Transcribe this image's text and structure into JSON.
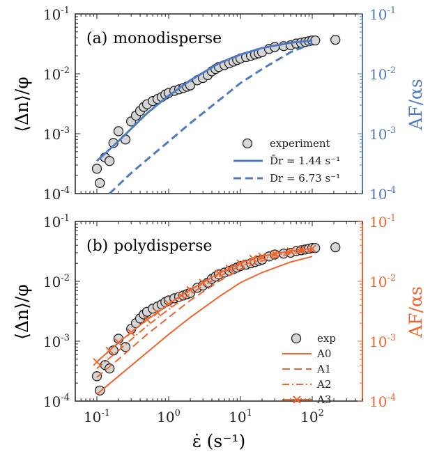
{
  "colors": {
    "blue": "#4f79c0",
    "orange": "#f0642d",
    "marker_fill": "#d6d6d6",
    "marker_edge": "#222222",
    "axis": "#222222"
  },
  "shared": {
    "xlabel": "ε̇ (s⁻¹)",
    "ylabel_left": "⟨Δn⟩/φ",
    "ylabel_right": "AF/αs",
    "x_ticks": [
      "10^-1",
      "10^0",
      "10^1",
      "10^2"
    ],
    "y_ticks": [
      "10^-4",
      "10^-3",
      "10^-2",
      "10^-1"
    ]
  },
  "chart_data": [
    {
      "type": "scatter",
      "panel": "(a)",
      "title": "monodisperse",
      "xscale": "log",
      "yscale": "log",
      "xlim": [
        0.05,
        500
      ],
      "ylim": [
        0.0001,
        0.1
      ],
      "right_axis": {
        "label": "AF/αs",
        "ylim": [
          0.0001,
          0.1
        ],
        "color": "#4f79c0"
      },
      "legend_position": "lower-right",
      "series": [
        {
          "name": "experiment",
          "kind": "markers",
          "x": [
            0.1,
            0.11,
            0.13,
            0.15,
            0.17,
            0.2,
            0.25,
            0.3,
            0.35,
            0.4,
            0.45,
            0.5,
            0.6,
            0.7,
            0.8,
            0.9,
            1.0,
            1.2,
            1.4,
            1.6,
            1.8,
            2.0,
            2.5,
            3.0,
            3.5,
            4.0,
            4.5,
            5.0,
            6.0,
            7.0,
            8.0,
            9.0,
            10,
            12,
            14,
            16,
            18,
            20,
            25,
            30,
            40,
            50,
            60,
            70,
            80,
            90,
            100,
            110,
            210
          ],
          "y": [
            0.00026,
            0.00015,
            0.0004,
            0.00035,
            0.0007,
            0.0011,
            0.0008,
            0.0016,
            0.002,
            0.0024,
            0.0028,
            0.0031,
            0.0035,
            0.0038,
            0.0041,
            0.0045,
            0.0048,
            0.0052,
            0.0055,
            0.0058,
            0.0061,
            0.0064,
            0.0078,
            0.0085,
            0.0095,
            0.011,
            0.012,
            0.013,
            0.014,
            0.015,
            0.016,
            0.017,
            0.018,
            0.019,
            0.02,
            0.021,
            0.022,
            0.023,
            0.026,
            0.028,
            0.029,
            0.03,
            0.032,
            0.033,
            0.034,
            0.035,
            0.036,
            0.036,
            0.037
          ]
        },
        {
          "name": "D̄r = 1.44 s⁻¹",
          "kind": "line",
          "dash": "solid",
          "x": [
            0.1,
            0.2,
            0.5,
            1,
            2,
            5,
            10,
            20,
            50,
            100
          ],
          "y": [
            0.00035,
            0.00075,
            0.0022,
            0.0043,
            0.0078,
            0.015,
            0.021,
            0.027,
            0.033,
            0.036
          ]
        },
        {
          "name": "Dr = 6.73 s⁻¹",
          "kind": "line",
          "dash": "dashed",
          "x": [
            0.15,
            0.3,
            0.5,
            1,
            2,
            5,
            10,
            20,
            50,
            100
          ],
          "y": [
            0.0001,
            0.00022,
            0.00037,
            0.00074,
            0.0015,
            0.0036,
            0.007,
            0.012,
            0.023,
            0.032
          ]
        }
      ]
    },
    {
      "type": "scatter",
      "panel": "(b)",
      "title": "polydisperse",
      "xscale": "log",
      "yscale": "log",
      "xlim": [
        0.05,
        500
      ],
      "ylim": [
        0.0001,
        0.1
      ],
      "right_axis": {
        "label": "AF/αs",
        "ylim": [
          0.0001,
          0.1
        ],
        "color": "#f0642d"
      },
      "legend_position": "lower-right",
      "series": [
        {
          "name": "exp",
          "kind": "markers",
          "x": [
            0.1,
            0.11,
            0.13,
            0.15,
            0.17,
            0.2,
            0.25,
            0.3,
            0.35,
            0.4,
            0.45,
            0.5,
            0.6,
            0.7,
            0.8,
            0.9,
            1.0,
            1.2,
            1.4,
            1.6,
            1.8,
            2.0,
            2.5,
            3.0,
            3.5,
            4.0,
            4.5,
            5.0,
            6.0,
            7.0,
            8.0,
            9.0,
            10,
            12,
            14,
            16,
            18,
            20,
            25,
            30,
            40,
            50,
            60,
            70,
            80,
            90,
            100,
            110,
            210
          ],
          "y": [
            0.00026,
            0.00015,
            0.0004,
            0.00035,
            0.0007,
            0.0011,
            0.0008,
            0.0016,
            0.002,
            0.0024,
            0.0028,
            0.0031,
            0.0035,
            0.0038,
            0.0041,
            0.0045,
            0.0048,
            0.0052,
            0.0055,
            0.0058,
            0.0061,
            0.0064,
            0.0078,
            0.0085,
            0.0095,
            0.011,
            0.012,
            0.013,
            0.014,
            0.015,
            0.016,
            0.017,
            0.018,
            0.019,
            0.02,
            0.021,
            0.022,
            0.023,
            0.026,
            0.028,
            0.029,
            0.03,
            0.032,
            0.033,
            0.034,
            0.035,
            0.036,
            0.036,
            0.037
          ]
        },
        {
          "name": "A0",
          "kind": "line",
          "dash": "solid",
          "x": [
            0.1,
            0.2,
            0.5,
            1,
            2,
            5,
            10,
            20,
            50,
            100
          ],
          "y": [
            0.00013,
            0.00026,
            0.00065,
            0.0013,
            0.0025,
            0.0055,
            0.0095,
            0.014,
            0.021,
            0.026
          ]
        },
        {
          "name": "A1",
          "kind": "line",
          "dash": "dashed",
          "x": [
            0.1,
            0.2,
            0.5,
            1,
            2,
            5,
            10,
            20,
            50,
            100
          ],
          "y": [
            0.00025,
            0.0005,
            0.0013,
            0.0025,
            0.0048,
            0.01,
            0.016,
            0.022,
            0.029,
            0.032
          ]
        },
        {
          "name": "A2",
          "kind": "line",
          "dash": "dashdot",
          "x": [
            0.1,
            0.2,
            0.5,
            1,
            2,
            5,
            10,
            20,
            50,
            100
          ],
          "y": [
            0.00035,
            0.0007,
            0.0018,
            0.0034,
            0.0062,
            0.012,
            0.018,
            0.024,
            0.031,
            0.034
          ]
        },
        {
          "name": "A3",
          "kind": "line-x",
          "dash": "solid",
          "x": [
            0.1,
            0.15,
            0.2,
            0.3,
            0.5,
            0.7,
            1,
            1.5,
            2,
            3,
            5,
            7,
            10,
            15,
            20,
            30,
            50,
            70,
            100
          ],
          "y": [
            0.00045,
            0.0007,
            0.00095,
            0.0014,
            0.0023,
            0.003,
            0.0042,
            0.0058,
            0.0072,
            0.0095,
            0.0135,
            0.0165,
            0.02,
            0.024,
            0.026,
            0.029,
            0.032,
            0.034,
            0.035
          ]
        }
      ]
    }
  ]
}
